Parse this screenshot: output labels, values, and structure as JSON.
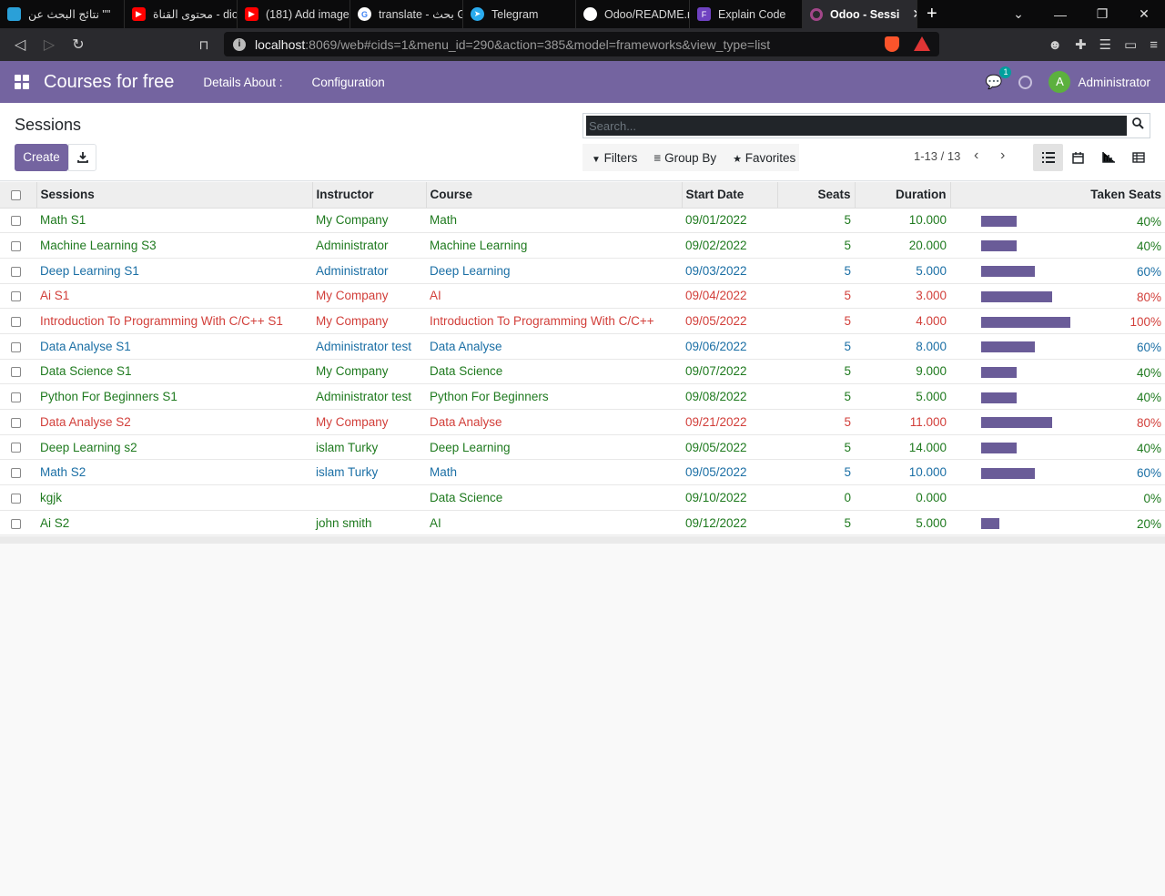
{
  "browser": {
    "tabs": [
      {
        "label": "نتائج البحث عن \"\"",
        "icon_color": "#2aa0d8"
      },
      {
        "label": "محتوى القناة - dio",
        "icon_color": "#ff0000"
      },
      {
        "label": "(181) Add image",
        "icon_color": "#ff0000"
      },
      {
        "label": "translate - بحث G",
        "icon_color": "#ffffff"
      },
      {
        "label": "Telegram",
        "icon_color": "#2aabee"
      },
      {
        "label": "Odoo/README.r",
        "icon_color": "#ffffff"
      },
      {
        "label": "Explain Code",
        "icon_color": "#6f42c1"
      },
      {
        "label": "Odoo - Sessi",
        "icon_color": "#a24689",
        "active": true
      }
    ],
    "url_host": "localhost",
    "url_rest": ":8069/web#cids=1&menu_id=290&action=385&model=frameworks&view_type=list"
  },
  "navbar": {
    "brand": "Courses for free",
    "menu": [
      "Details About :",
      "Configuration"
    ],
    "chat_badge": "1",
    "avatar_letter": "A",
    "user": "Administrator"
  },
  "control_panel": {
    "breadcrumb": "Sessions",
    "create_label": "Create",
    "search_placeholder": "Search...",
    "filters_label": "Filters",
    "groupby_label": "Group By",
    "favorites_label": "Favorites",
    "pager": "1-13 / 13"
  },
  "table": {
    "headers": [
      "Sessions",
      "Instructor",
      "Course",
      "Start Date",
      "Seats",
      "Duration",
      "Taken Seats"
    ],
    "rows": [
      {
        "session": "Math S1",
        "instructor": "My Company",
        "course": "Math",
        "start": "09/01/2022",
        "seats": "5",
        "duration": "10.000",
        "taken": 40,
        "taken_label": "40%",
        "color": "green"
      },
      {
        "session": "Machine Learning S3",
        "instructor": "Administrator",
        "course": "Machine Learning",
        "start": "09/02/2022",
        "seats": "5",
        "duration": "20.000",
        "taken": 40,
        "taken_label": "40%",
        "color": "green"
      },
      {
        "session": "Deep Learning S1",
        "instructor": "Administrator",
        "course": "Deep Learning",
        "start": "09/03/2022",
        "seats": "5",
        "duration": "5.000",
        "taken": 60,
        "taken_label": "60%",
        "color": "blue"
      },
      {
        "session": "Ai S1",
        "instructor": "My Company",
        "course": "AI",
        "start": "09/04/2022",
        "seats": "5",
        "duration": "3.000",
        "taken": 80,
        "taken_label": "80%",
        "color": "red"
      },
      {
        "session": "Introduction To Programming With C/C++ S1",
        "instructor": "My Company",
        "course": "Introduction To Programming With C/C++",
        "start": "09/05/2022",
        "seats": "5",
        "duration": "4.000",
        "taken": 100,
        "taken_label": "100%",
        "color": "red"
      },
      {
        "session": "Data Analyse S1",
        "instructor": "Administrator test",
        "course": "Data Analyse",
        "start": "09/06/2022",
        "seats": "5",
        "duration": "8.000",
        "taken": 60,
        "taken_label": "60%",
        "color": "blue"
      },
      {
        "session": "Data Science S1",
        "instructor": "My Company",
        "course": "Data Science",
        "start": "09/07/2022",
        "seats": "5",
        "duration": "9.000",
        "taken": 40,
        "taken_label": "40%",
        "color": "green"
      },
      {
        "session": "Python For Beginners S1",
        "instructor": "Administrator test",
        "course": "Python For Beginners",
        "start": "09/08/2022",
        "seats": "5",
        "duration": "5.000",
        "taken": 40,
        "taken_label": "40%",
        "color": "green"
      },
      {
        "session": "Data Analyse S2",
        "instructor": "My Company",
        "course": "Data Analyse",
        "start": "09/21/2022",
        "seats": "5",
        "duration": "11.000",
        "taken": 80,
        "taken_label": "80%",
        "color": "red"
      },
      {
        "session": "Deep Learning s2",
        "instructor": "islam Turky",
        "course": "Deep Learning",
        "start": "09/05/2022",
        "seats": "5",
        "duration": "14.000",
        "taken": 40,
        "taken_label": "40%",
        "color": "green"
      },
      {
        "session": "Math S2",
        "instructor": "islam Turky",
        "course": "Math",
        "start": "09/05/2022",
        "seats": "5",
        "duration": "10.000",
        "taken": 60,
        "taken_label": "60%",
        "color": "blue"
      },
      {
        "session": "kgjk",
        "instructor": "",
        "course": "Data Science",
        "start": "09/10/2022",
        "seats": "0",
        "duration": "0.000",
        "taken": 0,
        "taken_label": "0%",
        "color": "green"
      },
      {
        "session": "Ai S2",
        "instructor": "john smith",
        "course": "AI",
        "start": "09/12/2022",
        "seats": "5",
        "duration": "5.000",
        "taken": 20,
        "taken_label": "20%",
        "color": "green"
      }
    ]
  },
  "colors": {
    "brand": "#7464a0",
    "bar": "#6a5c98",
    "green": "#1f7a1f",
    "blue": "#1b6fa5",
    "red": "#d23f3a"
  }
}
